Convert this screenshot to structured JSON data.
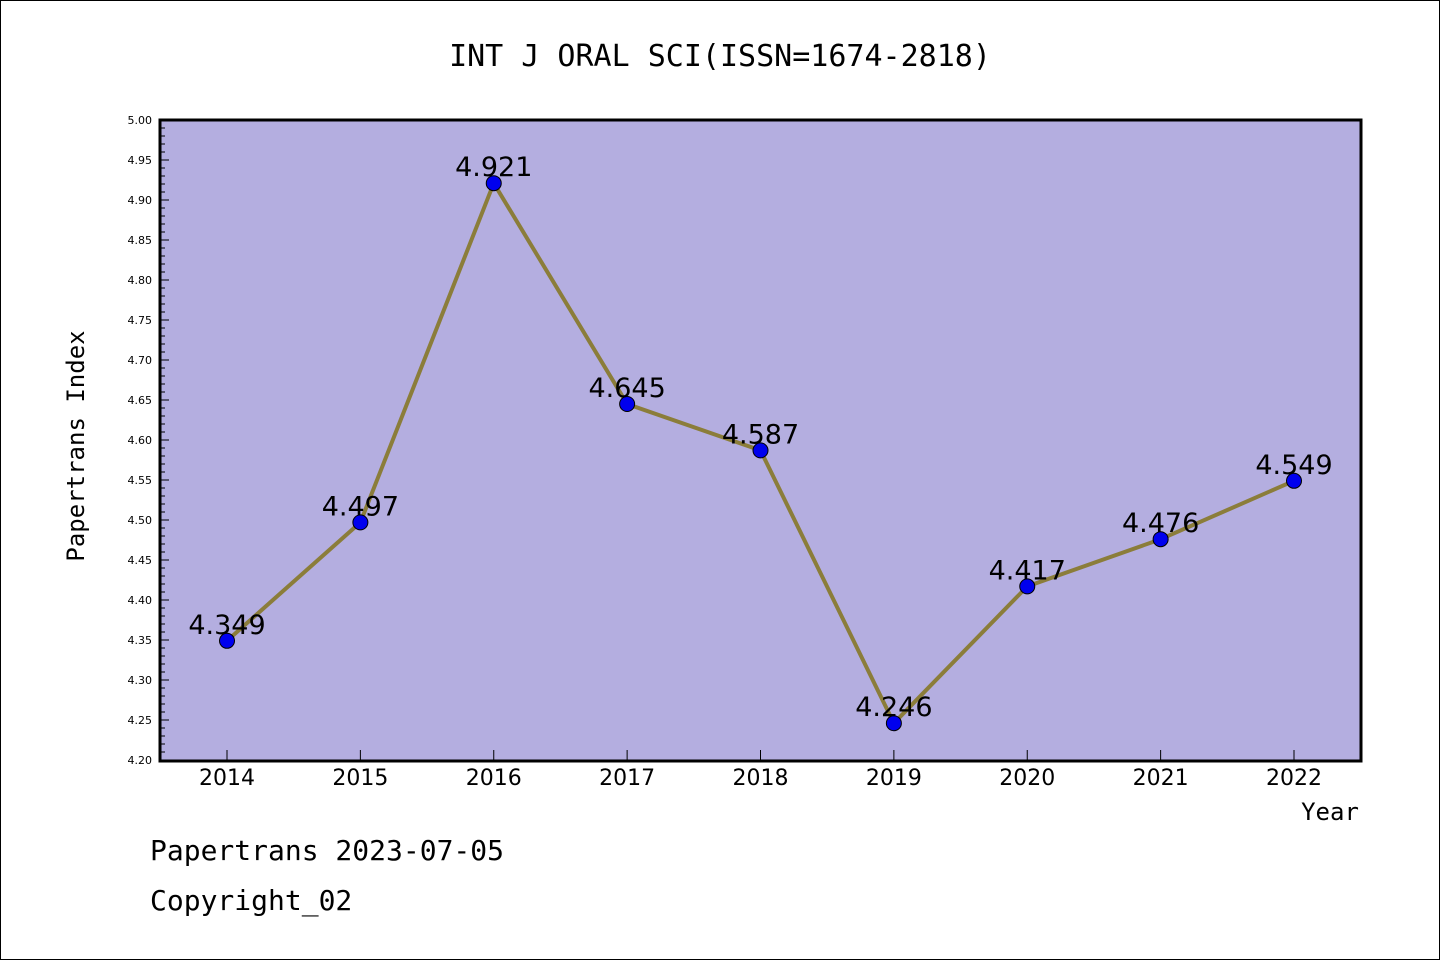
{
  "chart_data": {
    "type": "line",
    "title": "INT J ORAL SCI(ISSN=1674-2818)",
    "xlabel": "Year",
    "ylabel": "Papertrans Index",
    "categories": [
      "2014",
      "2015",
      "2016",
      "2017",
      "2018",
      "2019",
      "2020",
      "2021",
      "2022"
    ],
    "values": [
      4.349,
      4.497,
      4.921,
      4.645,
      4.587,
      4.246,
      4.417,
      4.476,
      4.549
    ],
    "data_labels": [
      "4.349",
      "4.497",
      "4.921",
      "4.645",
      "4.587",
      "4.246",
      "4.417",
      "4.476",
      "4.549"
    ],
    "ylim": [
      4.2,
      5.0
    ],
    "yticks": [
      "4.20",
      "4.25",
      "4.30",
      "4.35",
      "4.40",
      "4.45",
      "4.50",
      "4.55",
      "4.60",
      "4.65",
      "4.70",
      "4.75",
      "4.80",
      "4.85",
      "4.90",
      "4.95",
      "5.00"
    ],
    "grid": false,
    "colors": {
      "plot_background": "#b4aee0",
      "line": "#8b7d3a",
      "marker": "#0000ee"
    }
  },
  "footer": {
    "line1": "Papertrans 2023-07-05",
    "line2": "Copyright_02"
  }
}
